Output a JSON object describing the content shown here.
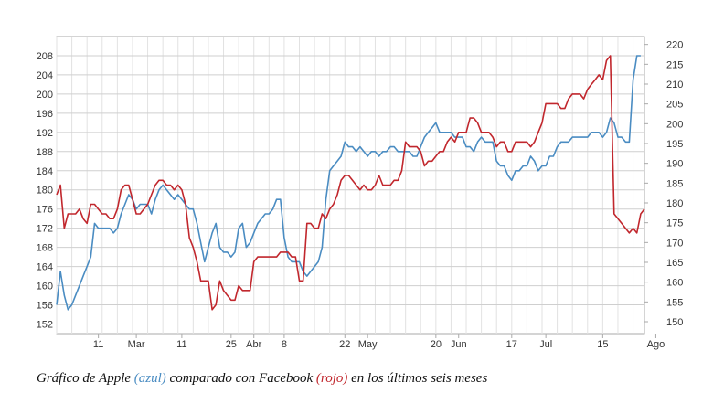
{
  "caption": {
    "part1": "Gráfico de Apple ",
    "blue_word": "(azul)",
    "part2": " comparado con Facebook ",
    "red_word": "(rojo)",
    "part3": " en los últimos seis meses"
  },
  "chart_data": {
    "type": "line",
    "title": "",
    "grid": true,
    "x_tick_labels": [
      "11",
      "Mar",
      "11",
      "25",
      "Abr",
      "8",
      "22",
      "May",
      "20",
      "Jun",
      "17",
      "Jul",
      "15",
      "Ago"
    ],
    "x_tick_positions": [
      11,
      21,
      33,
      46,
      52,
      60,
      76,
      82,
      100,
      106,
      120,
      129,
      144,
      158
    ],
    "left_axis": {
      "range": [
        150,
        212
      ],
      "ticks": [
        152,
        156,
        160,
        164,
        168,
        172,
        176,
        180,
        184,
        188,
        192,
        196,
        200,
        204,
        208
      ]
    },
    "right_axis": {
      "range": [
        147,
        222
      ],
      "ticks": [
        150,
        155,
        160,
        165,
        170,
        175,
        180,
        185,
        190,
        195,
        200,
        205,
        210,
        215,
        220
      ]
    },
    "series": [
      {
        "color": "#4a8cc2",
        "axis": "left",
        "points": [
          [
            0,
            156
          ],
          [
            1,
            163
          ],
          [
            2,
            158
          ],
          [
            3,
            155
          ],
          [
            4,
            156
          ],
          [
            5,
            158
          ],
          [
            6,
            160
          ],
          [
            7,
            162
          ],
          [
            8,
            164
          ],
          [
            9,
            166
          ],
          [
            10,
            173
          ],
          [
            11,
            172
          ],
          [
            12,
            172
          ],
          [
            13,
            172
          ],
          [
            14,
            172
          ],
          [
            15,
            171
          ],
          [
            16,
            172
          ],
          [
            17,
            175
          ],
          [
            18,
            177
          ],
          [
            19,
            179
          ],
          [
            20,
            178
          ],
          [
            21,
            176
          ],
          [
            22,
            177
          ],
          [
            23,
            177
          ],
          [
            24,
            177
          ],
          [
            25,
            175
          ],
          [
            26,
            178
          ],
          [
            27,
            180
          ],
          [
            28,
            181
          ],
          [
            29,
            180
          ],
          [
            30,
            179
          ],
          [
            31,
            178
          ],
          [
            32,
            179
          ],
          [
            33,
            178
          ],
          [
            34,
            177
          ],
          [
            35,
            176
          ],
          [
            36,
            176
          ],
          [
            37,
            173
          ],
          [
            38,
            169
          ],
          [
            39,
            165
          ],
          [
            40,
            168
          ],
          [
            41,
            171
          ],
          [
            42,
            173
          ],
          [
            43,
            168
          ],
          [
            44,
            167
          ],
          [
            45,
            167
          ],
          [
            46,
            166
          ],
          [
            47,
            167
          ],
          [
            48,
            172
          ],
          [
            49,
            173
          ],
          [
            50,
            168
          ],
          [
            51,
            169
          ],
          [
            52,
            171
          ],
          [
            53,
            173
          ],
          [
            54,
            174
          ],
          [
            55,
            175
          ],
          [
            56,
            175
          ],
          [
            57,
            176
          ],
          [
            58,
            178
          ],
          [
            59,
            178
          ],
          [
            60,
            170
          ],
          [
            61,
            166
          ],
          [
            62,
            165
          ],
          [
            63,
            165
          ],
          [
            64,
            165
          ],
          [
            65,
            163
          ],
          [
            66,
            162
          ],
          [
            67,
            163
          ],
          [
            68,
            164
          ],
          [
            69,
            165
          ],
          [
            70,
            168
          ],
          [
            71,
            178
          ],
          [
            72,
            184
          ],
          [
            73,
            185
          ],
          [
            74,
            186
          ],
          [
            75,
            187
          ],
          [
            76,
            190
          ],
          [
            77,
            189
          ],
          [
            78,
            189
          ],
          [
            79,
            188
          ],
          [
            80,
            189
          ],
          [
            81,
            188
          ],
          [
            82,
            187
          ],
          [
            83,
            188
          ],
          [
            84,
            188
          ],
          [
            85,
            187
          ],
          [
            86,
            188
          ],
          [
            87,
            188
          ],
          [
            88,
            189
          ],
          [
            89,
            189
          ],
          [
            90,
            188
          ],
          [
            91,
            188
          ],
          [
            92,
            188
          ],
          [
            93,
            188
          ],
          [
            94,
            187
          ],
          [
            95,
            187
          ],
          [
            96,
            189
          ],
          [
            97,
            191
          ],
          [
            98,
            192
          ],
          [
            99,
            193
          ],
          [
            100,
            194
          ],
          [
            101,
            192
          ],
          [
            102,
            192
          ],
          [
            103,
            192
          ],
          [
            104,
            192
          ],
          [
            105,
            191
          ],
          [
            106,
            191
          ],
          [
            107,
            191
          ],
          [
            108,
            189
          ],
          [
            109,
            189
          ],
          [
            110,
            188
          ],
          [
            111,
            190
          ],
          [
            112,
            191
          ],
          [
            113,
            190
          ],
          [
            114,
            190
          ],
          [
            115,
            190
          ],
          [
            116,
            186
          ],
          [
            117,
            185
          ],
          [
            118,
            185
          ],
          [
            119,
            183
          ],
          [
            120,
            182
          ],
          [
            121,
            184
          ],
          [
            122,
            184
          ],
          [
            123,
            185
          ],
          [
            124,
            185
          ],
          [
            125,
            187
          ],
          [
            126,
            186
          ],
          [
            127,
            184
          ],
          [
            128,
            185
          ],
          [
            129,
            185
          ],
          [
            130,
            187
          ],
          [
            131,
            187
          ],
          [
            132,
            189
          ],
          [
            133,
            190
          ],
          [
            134,
            190
          ],
          [
            135,
            190
          ],
          [
            136,
            191
          ],
          [
            137,
            191
          ],
          [
            138,
            191
          ],
          [
            139,
            191
          ],
          [
            140,
            191
          ],
          [
            141,
            192
          ],
          [
            142,
            192
          ],
          [
            143,
            192
          ],
          [
            144,
            191
          ],
          [
            145,
            192
          ],
          [
            146,
            195
          ],
          [
            147,
            194
          ],
          [
            148,
            191
          ],
          [
            149,
            191
          ],
          [
            150,
            190
          ],
          [
            151,
            190
          ],
          [
            152,
            203
          ],
          [
            153,
            208
          ],
          [
            154,
            208
          ]
        ]
      },
      {
        "color": "#c1272d",
        "axis": "left",
        "points": [
          [
            0,
            179
          ],
          [
            1,
            181
          ],
          [
            2,
            172
          ],
          [
            3,
            175
          ],
          [
            4,
            175
          ],
          [
            5,
            175
          ],
          [
            6,
            176
          ],
          [
            7,
            174
          ],
          [
            8,
            173
          ],
          [
            9,
            177
          ],
          [
            10,
            177
          ],
          [
            11,
            176
          ],
          [
            12,
            175
          ],
          [
            13,
            175
          ],
          [
            14,
            174
          ],
          [
            15,
            174
          ],
          [
            16,
            176
          ],
          [
            17,
            180
          ],
          [
            18,
            181
          ],
          [
            19,
            181
          ],
          [
            20,
            178
          ],
          [
            21,
            175
          ],
          [
            22,
            175
          ],
          [
            23,
            176
          ],
          [
            24,
            177
          ],
          [
            25,
            179
          ],
          [
            26,
            181
          ],
          [
            27,
            182
          ],
          [
            28,
            182
          ],
          [
            29,
            181
          ],
          [
            30,
            181
          ],
          [
            31,
            180
          ],
          [
            32,
            181
          ],
          [
            33,
            180
          ],
          [
            34,
            177
          ],
          [
            35,
            170
          ],
          [
            36,
            168
          ],
          [
            37,
            165
          ],
          [
            38,
            161
          ],
          [
            39,
            161
          ],
          [
            40,
            161
          ],
          [
            41,
            155
          ],
          [
            42,
            156
          ],
          [
            43,
            161
          ],
          [
            44,
            159
          ],
          [
            45,
            158
          ],
          [
            46,
            157
          ],
          [
            47,
            157
          ],
          [
            48,
            160
          ],
          [
            49,
            159
          ],
          [
            50,
            159
          ],
          [
            51,
            159
          ],
          [
            52,
            165
          ],
          [
            53,
            166
          ],
          [
            54,
            166
          ],
          [
            55,
            166
          ],
          [
            56,
            166
          ],
          [
            57,
            166
          ],
          [
            58,
            166
          ],
          [
            59,
            167
          ],
          [
            60,
            167
          ],
          [
            61,
            167
          ],
          [
            62,
            166
          ],
          [
            63,
            166
          ],
          [
            64,
            161
          ],
          [
            65,
            161
          ],
          [
            66,
            173
          ],
          [
            67,
            173
          ],
          [
            68,
            172
          ],
          [
            69,
            172
          ],
          [
            70,
            175
          ],
          [
            71,
            174
          ],
          [
            72,
            176
          ],
          [
            73,
            177
          ],
          [
            74,
            179
          ],
          [
            75,
            182
          ],
          [
            76,
            183
          ],
          [
            77,
            183
          ],
          [
            78,
            182
          ],
          [
            79,
            181
          ],
          [
            80,
            180
          ],
          [
            81,
            181
          ],
          [
            82,
            180
          ],
          [
            83,
            180
          ],
          [
            84,
            181
          ],
          [
            85,
            183
          ],
          [
            86,
            181
          ],
          [
            87,
            181
          ],
          [
            88,
            181
          ],
          [
            89,
            182
          ],
          [
            90,
            182
          ],
          [
            91,
            184
          ],
          [
            92,
            190
          ],
          [
            93,
            189
          ],
          [
            94,
            189
          ],
          [
            95,
            189
          ],
          [
            96,
            188
          ],
          [
            97,
            185
          ],
          [
            98,
            186
          ],
          [
            99,
            186
          ],
          [
            100,
            187
          ],
          [
            101,
            188
          ],
          [
            102,
            188
          ],
          [
            103,
            190
          ],
          [
            104,
            191
          ],
          [
            105,
            190
          ],
          [
            106,
            192
          ],
          [
            107,
            192
          ],
          [
            108,
            192
          ],
          [
            109,
            195
          ],
          [
            110,
            195
          ],
          [
            111,
            194
          ],
          [
            112,
            192
          ],
          [
            113,
            192
          ],
          [
            114,
            192
          ],
          [
            115,
            191
          ],
          [
            116,
            189
          ],
          [
            117,
            190
          ],
          [
            118,
            190
          ],
          [
            119,
            188
          ],
          [
            120,
            188
          ],
          [
            121,
            190
          ],
          [
            122,
            190
          ],
          [
            123,
            190
          ],
          [
            124,
            190
          ],
          [
            125,
            189
          ],
          [
            126,
            190
          ],
          [
            127,
            192
          ],
          [
            128,
            194
          ],
          [
            129,
            198
          ],
          [
            130,
            198
          ],
          [
            131,
            198
          ],
          [
            132,
            198
          ],
          [
            133,
            197
          ],
          [
            134,
            197
          ],
          [
            135,
            199
          ],
          [
            136,
            200
          ],
          [
            137,
            200
          ],
          [
            138,
            200
          ],
          [
            139,
            199
          ],
          [
            140,
            201
          ],
          [
            141,
            202
          ],
          [
            142,
            203
          ],
          [
            143,
            204
          ],
          [
            144,
            203
          ],
          [
            145,
            207
          ],
          [
            146,
            208
          ],
          [
            147,
            175
          ],
          [
            148,
            174
          ],
          [
            149,
            173
          ],
          [
            150,
            172
          ],
          [
            151,
            171
          ],
          [
            152,
            172
          ],
          [
            153,
            171
          ],
          [
            154,
            175
          ],
          [
            155,
            176
          ]
        ]
      }
    ]
  },
  "colors": {
    "apple": "#4a8cc2",
    "facebook": "#c1272d",
    "grid": "#cfcfcf",
    "axis": "#aaaaaa"
  }
}
